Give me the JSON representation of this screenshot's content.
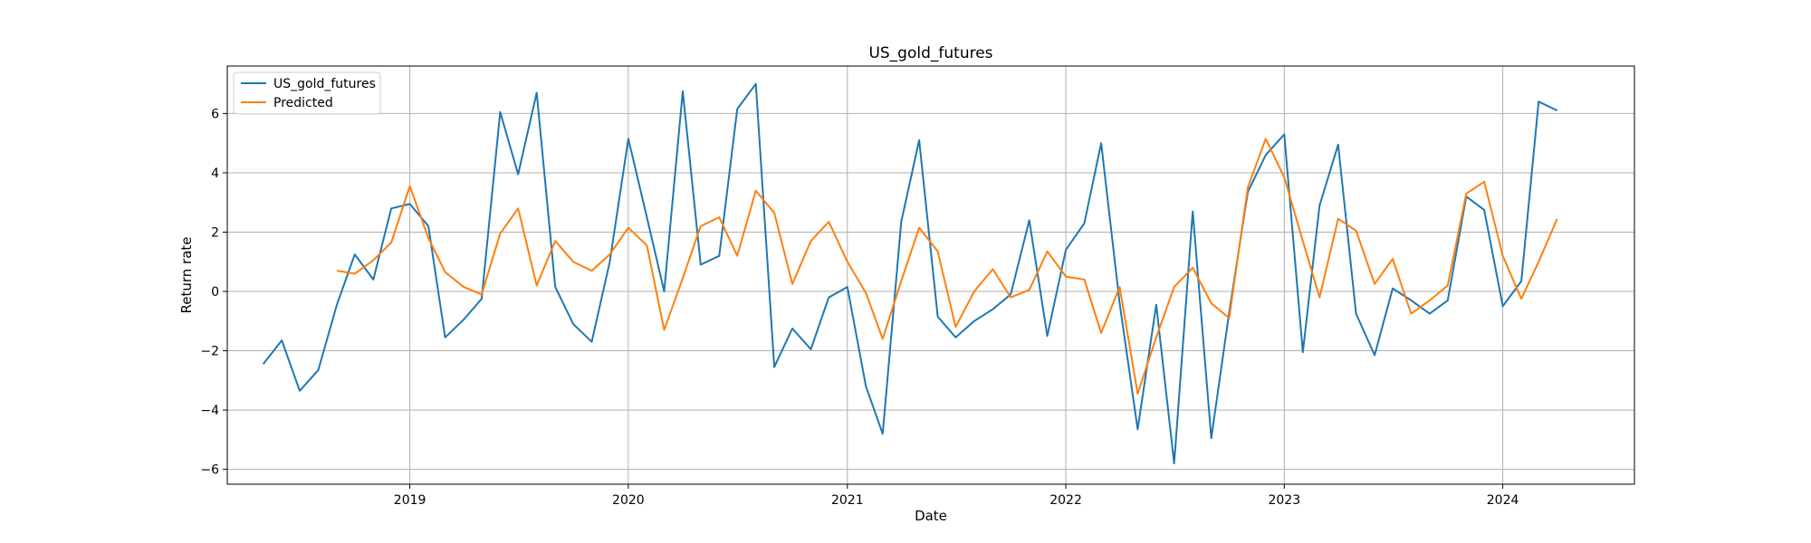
{
  "chart_data": {
    "type": "line",
    "title": "US_gold_futures",
    "xlabel": "Date",
    "ylabel": "Return rate",
    "xlim": [
      "2018-03-02",
      "2024-08-08"
    ],
    "ylim": [
      -6.5,
      7.6
    ],
    "grid": true,
    "legend_position": "top-left",
    "x_ticks": [
      "2019-01-01",
      "2020-01-01",
      "2021-01-01",
      "2022-01-01",
      "2023-01-01",
      "2024-01-01"
    ],
    "x_tick_labels": [
      "2019",
      "2020",
      "2021",
      "2022",
      "2023",
      "2024"
    ],
    "y_ticks": [
      -6,
      -4,
      -2,
      0,
      2,
      4,
      6
    ],
    "y_tick_labels": [
      "−6",
      "−4",
      "−2",
      "0",
      "2",
      "4",
      "6"
    ],
    "colors": {
      "US_gold_futures": "#1f77b4",
      "Predicted": "#ff7f0e",
      "grid": "#b0b0b0"
    },
    "series": [
      {
        "name": "US_gold_futures",
        "x": [
          "2018-05-01",
          "2018-06-01",
          "2018-07-01",
          "2018-08-01",
          "2018-09-01",
          "2018-10-01",
          "2018-11-01",
          "2018-12-01",
          "2019-01-01",
          "2019-02-01",
          "2019-03-01",
          "2019-04-01",
          "2019-05-01",
          "2019-06-01",
          "2019-07-01",
          "2019-08-01",
          "2019-09-01",
          "2019-10-01",
          "2019-11-01",
          "2019-12-01",
          "2020-01-01",
          "2020-02-01",
          "2020-03-01",
          "2020-04-01",
          "2020-05-01",
          "2020-06-01",
          "2020-07-01",
          "2020-08-01",
          "2020-09-01",
          "2020-10-01",
          "2020-11-01",
          "2020-12-01",
          "2021-01-01",
          "2021-02-01",
          "2021-03-01",
          "2021-04-01",
          "2021-05-01",
          "2021-06-01",
          "2021-07-01",
          "2021-08-01",
          "2021-09-01",
          "2021-10-01",
          "2021-11-01",
          "2021-12-01",
          "2022-01-01",
          "2022-02-01",
          "2022-03-01",
          "2022-04-01",
          "2022-05-01",
          "2022-06-01",
          "2022-07-01",
          "2022-08-01",
          "2022-09-01",
          "2022-10-01",
          "2022-11-01",
          "2022-12-01",
          "2023-01-01",
          "2023-02-01",
          "2023-03-01",
          "2023-04-01",
          "2023-05-01",
          "2023-06-01",
          "2023-07-01",
          "2023-08-01",
          "2023-09-01",
          "2023-10-01",
          "2023-11-01",
          "2023-12-01",
          "2024-01-01",
          "2024-02-01",
          "2024-03-01",
          "2024-04-01"
        ],
        "values": [
          -2.45,
          -1.65,
          -3.35,
          -2.65,
          -0.45,
          1.25,
          0.4,
          2.8,
          2.95,
          2.2,
          -1.55,
          -0.95,
          -0.25,
          6.05,
          3.95,
          6.7,
          0.15,
          -1.1,
          -1.7,
          1.0,
          5.15,
          2.5,
          0.0,
          6.75,
          0.9,
          1.2,
          6.15,
          7.0,
          -2.55,
          -1.25,
          -1.95,
          -0.2,
          0.15,
          -3.2,
          -4.8,
          2.35,
          5.1,
          -0.85,
          -1.55,
          -1.0,
          -0.6,
          -0.1,
          2.4,
          -1.5,
          1.4,
          2.3,
          5.0,
          -0.4,
          -4.65,
          -0.45,
          -5.8,
          2.7,
          -4.95,
          -0.7,
          3.35,
          4.6,
          5.3,
          -2.05,
          2.9,
          4.95,
          -0.75,
          -2.15,
          0.1,
          -0.3,
          -0.75,
          -0.3,
          3.2,
          2.75,
          -0.5,
          0.35,
          6.4,
          6.1
        ]
      },
      {
        "name": "Predicted",
        "x": [
          "2018-09-01",
          "2018-10-01",
          "2018-11-01",
          "2018-12-01",
          "2019-01-01",
          "2019-02-01",
          "2019-03-01",
          "2019-04-01",
          "2019-05-01",
          "2019-06-01",
          "2019-07-01",
          "2019-08-01",
          "2019-09-01",
          "2019-10-01",
          "2019-11-01",
          "2019-12-01",
          "2020-01-01",
          "2020-02-01",
          "2020-03-01",
          "2020-04-01",
          "2020-05-01",
          "2020-06-01",
          "2020-07-01",
          "2020-08-01",
          "2020-09-01",
          "2020-10-01",
          "2020-11-01",
          "2020-12-01",
          "2021-01-01",
          "2021-02-01",
          "2021-03-01",
          "2021-04-01",
          "2021-05-01",
          "2021-06-01",
          "2021-07-01",
          "2021-08-01",
          "2021-09-01",
          "2021-10-01",
          "2021-11-01",
          "2021-12-01",
          "2022-01-01",
          "2022-02-01",
          "2022-03-01",
          "2022-04-01",
          "2022-05-01",
          "2022-06-01",
          "2022-07-01",
          "2022-08-01",
          "2022-09-01",
          "2022-10-01",
          "2022-11-01",
          "2022-12-01",
          "2023-01-01",
          "2023-02-01",
          "2023-03-01",
          "2023-04-01",
          "2023-05-01",
          "2023-06-01",
          "2023-07-01",
          "2023-08-01",
          "2023-09-01",
          "2023-10-01",
          "2023-11-01",
          "2023-12-01",
          "2024-01-01",
          "2024-02-01",
          "2024-03-01",
          "2024-04-01"
        ],
        "values": [
          0.7,
          0.6,
          1.05,
          1.65,
          3.55,
          1.8,
          0.65,
          0.15,
          -0.1,
          1.95,
          2.8,
          0.2,
          1.7,
          1.0,
          0.7,
          1.25,
          2.15,
          1.55,
          -1.3,
          0.45,
          2.2,
          2.5,
          1.2,
          3.4,
          2.65,
          0.25,
          1.7,
          2.35,
          1.0,
          -0.05,
          -1.6,
          0.35,
          2.15,
          1.35,
          -1.2,
          0.0,
          0.75,
          -0.2,
          0.05,
          1.35,
          0.5,
          0.4,
          -1.4,
          0.15,
          -3.45,
          -1.55,
          0.15,
          0.8,
          -0.4,
          -0.9,
          3.5,
          5.15,
          3.85,
          1.7,
          -0.2,
          2.45,
          2.05,
          0.25,
          1.1,
          -0.75,
          -0.3,
          0.2,
          3.3,
          3.7,
          1.2,
          -0.25,
          1.0,
          2.45
        ]
      }
    ]
  }
}
